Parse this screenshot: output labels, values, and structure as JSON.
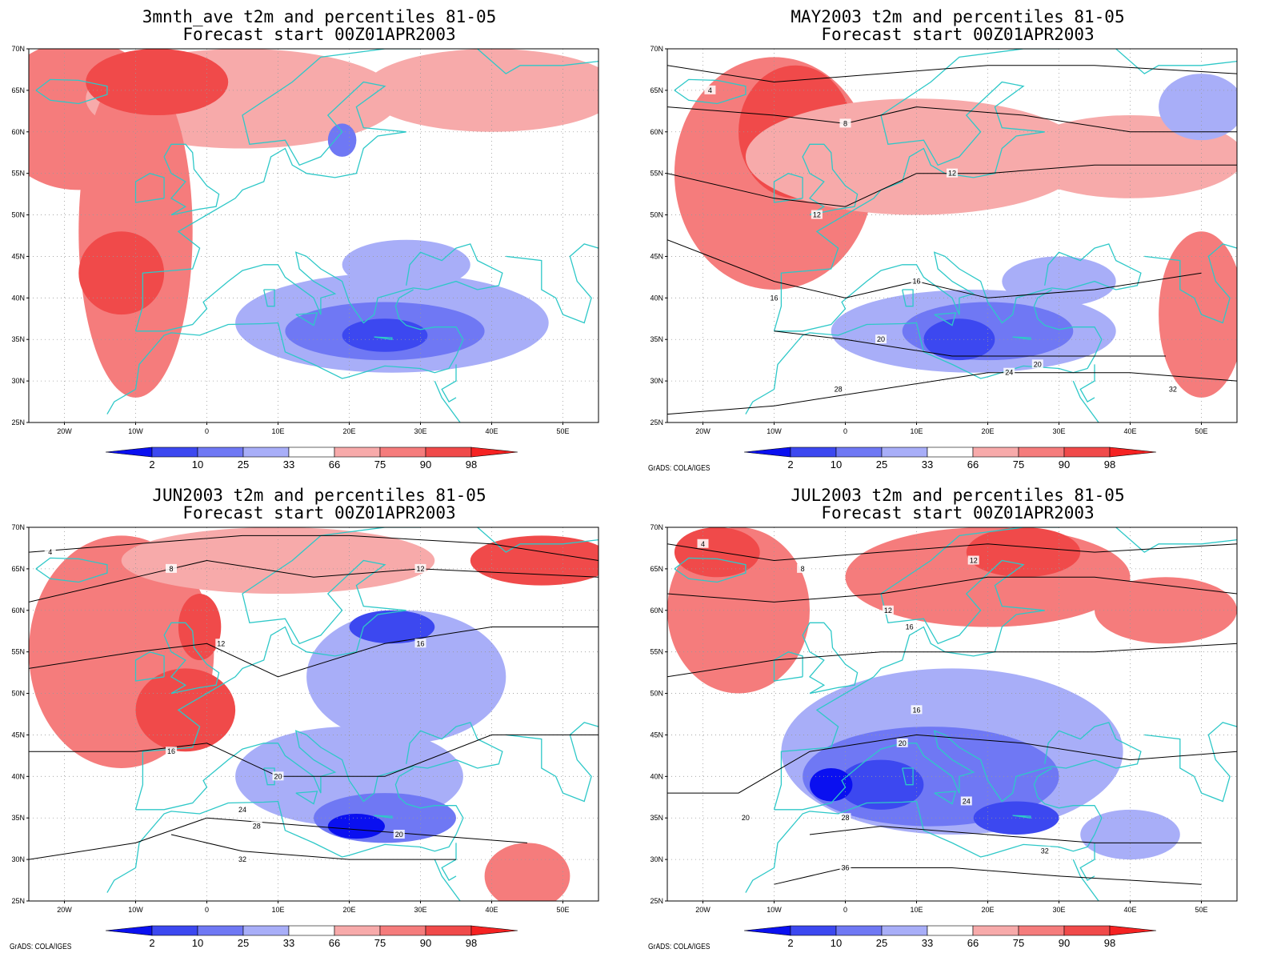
{
  "credit": "GrADS: COLA/IGES",
  "palette": {
    "p2": "#0a10f0",
    "p10": "#3c48f0",
    "p25": "#6f78f4",
    "p33": "#a8aef8",
    "p66": "#f7aaaa",
    "p75": "#f57c7c",
    "p90": "#f04a4a",
    "p98": "#f52222",
    "coast": "#2ec8c8",
    "contour": "#000000",
    "grid": "#999999"
  },
  "colorbar_labels": [
    "2",
    "10",
    "25",
    "33",
    "66",
    "75",
    "90",
    "98"
  ],
  "lat_labels": [
    "70N",
    "65N",
    "60N",
    "55N",
    "50N",
    "45N",
    "40N",
    "35N",
    "30N",
    "25N"
  ],
  "lon_labels": [
    "20W",
    "10W",
    "0",
    "10E",
    "20E",
    "30E",
    "40E",
    "50E"
  ],
  "panels": [
    {
      "title_line1": "3mnth_ave t2m and percentiles 81-05",
      "title_line2": "Forecast start 00Z01APR2003",
      "show_credit": false,
      "blobs": [
        {
          "lon": -18,
          "lat": 62,
          "rx": 12,
          "ry": 9,
          "cls": "p75"
        },
        {
          "lon": 5,
          "lat": 64,
          "rx": 22,
          "ry": 6,
          "cls": "p66"
        },
        {
          "lon": -10,
          "lat": 48,
          "rx": 8,
          "ry": 20,
          "cls": "p75"
        },
        {
          "lon": -12,
          "lat": 43,
          "rx": 6,
          "ry": 5,
          "cls": "p90"
        },
        {
          "lon": -7,
          "lat": 66,
          "rx": 10,
          "ry": 4,
          "cls": "p90"
        },
        {
          "lon": 40,
          "lat": 65,
          "rx": 18,
          "ry": 5,
          "cls": "p66"
        },
        {
          "lon": 26,
          "lat": 37,
          "rx": 22,
          "ry": 6,
          "cls": "p33"
        },
        {
          "lon": 25,
          "lat": 36,
          "rx": 14,
          "ry": 3.5,
          "cls": "p25"
        },
        {
          "lon": 25,
          "lat": 35.5,
          "rx": 6,
          "ry": 2,
          "cls": "p10"
        },
        {
          "lon": 28,
          "lat": 44,
          "rx": 9,
          "ry": 3,
          "cls": "p33"
        },
        {
          "lon": 19,
          "lat": 59,
          "rx": 2,
          "ry": 2,
          "cls": "p25"
        }
      ],
      "contours": []
    },
    {
      "title_line1": "MAY2003 t2m and percentiles 81-05",
      "title_line2": "Forecast start 00Z01APR2003",
      "show_credit": true,
      "blobs": [
        {
          "lon": -10,
          "lat": 55,
          "rx": 14,
          "ry": 14,
          "cls": "p75"
        },
        {
          "lon": -7,
          "lat": 60,
          "rx": 8,
          "ry": 8,
          "cls": "p90"
        },
        {
          "lon": 10,
          "lat": 57,
          "rx": 24,
          "ry": 7,
          "cls": "p66"
        },
        {
          "lon": 40,
          "lat": 57,
          "rx": 16,
          "ry": 5,
          "cls": "p66"
        },
        {
          "lon": 50,
          "lat": 38,
          "rx": 6,
          "ry": 10,
          "cls": "p75"
        },
        {
          "lon": 18,
          "lat": 36,
          "rx": 20,
          "ry": 5,
          "cls": "p33"
        },
        {
          "lon": 20,
          "lat": 36,
          "rx": 12,
          "ry": 3.5,
          "cls": "p25"
        },
        {
          "lon": 16,
          "lat": 35,
          "rx": 5,
          "ry": 2.5,
          "cls": "p10"
        },
        {
          "lon": 30,
          "lat": 42,
          "rx": 8,
          "ry": 3,
          "cls": "p33"
        },
        {
          "lon": 50,
          "lat": 63,
          "rx": 6,
          "ry": 4,
          "cls": "p33"
        }
      ],
      "contours": [
        {
          "label": "4",
          "lon": -19,
          "lat": 65
        },
        {
          "label": "8",
          "lon": 0,
          "lat": 61
        },
        {
          "label": "12",
          "lon": -4,
          "lat": 50
        },
        {
          "label": "12",
          "lon": 15,
          "lat": 55
        },
        {
          "label": "16",
          "lon": -10,
          "lat": 40
        },
        {
          "label": "16",
          "lon": 10,
          "lat": 42
        },
        {
          "label": "20",
          "lon": 5,
          "lat": 35
        },
        {
          "label": "20",
          "lon": 27,
          "lat": 32
        },
        {
          "label": "24",
          "lon": 23,
          "lat": 31
        },
        {
          "label": "28",
          "lon": -1,
          "lat": 29
        },
        {
          "label": "32",
          "lon": 46,
          "lat": 29
        }
      ]
    },
    {
      "title_line1": "JUN2003 t2m and percentiles 81-05",
      "title_line2": "Forecast start 00Z01APR2003",
      "show_credit": true,
      "blobs": [
        {
          "lon": -12,
          "lat": 55,
          "rx": 13,
          "ry": 14,
          "cls": "p75"
        },
        {
          "lon": -3,
          "lat": 48,
          "rx": 7,
          "ry": 5,
          "cls": "p90"
        },
        {
          "lon": -1,
          "lat": 58,
          "rx": 3,
          "ry": 4,
          "cls": "p90"
        },
        {
          "lon": 10,
          "lat": 66,
          "rx": 22,
          "ry": 4,
          "cls": "p66"
        },
        {
          "lon": 47,
          "lat": 66,
          "rx": 10,
          "ry": 3,
          "cls": "p90"
        },
        {
          "lon": 28,
          "lat": 52,
          "rx": 14,
          "ry": 8,
          "cls": "p33"
        },
        {
          "lon": 26,
          "lat": 58,
          "rx": 6,
          "ry": 2,
          "cls": "p10"
        },
        {
          "lon": 20,
          "lat": 40,
          "rx": 16,
          "ry": 6,
          "cls": "p33"
        },
        {
          "lon": 25,
          "lat": 35,
          "rx": 10,
          "ry": 3,
          "cls": "p25"
        },
        {
          "lon": 21,
          "lat": 34,
          "rx": 4,
          "ry": 1.5,
          "cls": "p2"
        },
        {
          "lon": 45,
          "lat": 28,
          "rx": 6,
          "ry": 4,
          "cls": "p75"
        }
      ],
      "contours": [
        {
          "label": "4",
          "lon": -22,
          "lat": 67
        },
        {
          "label": "8",
          "lon": -5,
          "lat": 65
        },
        {
          "label": "12",
          "lon": 2,
          "lat": 56
        },
        {
          "label": "12",
          "lon": 30,
          "lat": 65
        },
        {
          "label": "16",
          "lon": -5,
          "lat": 43
        },
        {
          "label": "16",
          "lon": 30,
          "lat": 56
        },
        {
          "label": "20",
          "lon": 10,
          "lat": 40
        },
        {
          "label": "20",
          "lon": 27,
          "lat": 33
        },
        {
          "label": "24",
          "lon": 5,
          "lat": 36
        },
        {
          "label": "28",
          "lon": 7,
          "lat": 34
        },
        {
          "label": "32",
          "lon": 5,
          "lat": 30
        }
      ]
    },
    {
      "title_line1": "JUL2003 t2m and percentiles 81-05",
      "title_line2": "Forecast start 00Z01APR2003",
      "show_credit": true,
      "blobs": [
        {
          "lon": -15,
          "lat": 60,
          "rx": 10,
          "ry": 10,
          "cls": "p75"
        },
        {
          "lon": -18,
          "lat": 67,
          "rx": 6,
          "ry": 3,
          "cls": "p90"
        },
        {
          "lon": 20,
          "lat": 64,
          "rx": 20,
          "ry": 6,
          "cls": "p75"
        },
        {
          "lon": 25,
          "lat": 67,
          "rx": 8,
          "ry": 3,
          "cls": "p90"
        },
        {
          "lon": 45,
          "lat": 60,
          "rx": 10,
          "ry": 4,
          "cls": "p75"
        },
        {
          "lon": 15,
          "lat": 43,
          "rx": 24,
          "ry": 10,
          "cls": "p33"
        },
        {
          "lon": 12,
          "lat": 40,
          "rx": 18,
          "ry": 6,
          "cls": "p25"
        },
        {
          "lon": 5,
          "lat": 39,
          "rx": 6,
          "ry": 3,
          "cls": "p10"
        },
        {
          "lon": 24,
          "lat": 35,
          "rx": 6,
          "ry": 2,
          "cls": "p10"
        },
        {
          "lon": -2,
          "lat": 39,
          "rx": 3,
          "ry": 2,
          "cls": "p2"
        },
        {
          "lon": 40,
          "lat": 33,
          "rx": 7,
          "ry": 3,
          "cls": "p33"
        }
      ],
      "contours": [
        {
          "label": "4",
          "lon": -20,
          "lat": 68
        },
        {
          "label": "8",
          "lon": -6,
          "lat": 65
        },
        {
          "label": "12",
          "lon": 18,
          "lat": 66
        },
        {
          "label": "12",
          "lon": 6,
          "lat": 60
        },
        {
          "label": "16",
          "lon": 9,
          "lat": 58
        },
        {
          "label": "16",
          "lon": 10,
          "lat": 48
        },
        {
          "label": "20",
          "lon": 8,
          "lat": 44
        },
        {
          "label": "20",
          "lon": -14,
          "lat": 35
        },
        {
          "label": "24",
          "lon": 17,
          "lat": 37
        },
        {
          "label": "28",
          "lon": 0,
          "lat": 35
        },
        {
          "label": "32",
          "lon": 28,
          "lat": 31
        },
        {
          "label": "36",
          "lon": 0,
          "lat": 29
        }
      ]
    }
  ]
}
